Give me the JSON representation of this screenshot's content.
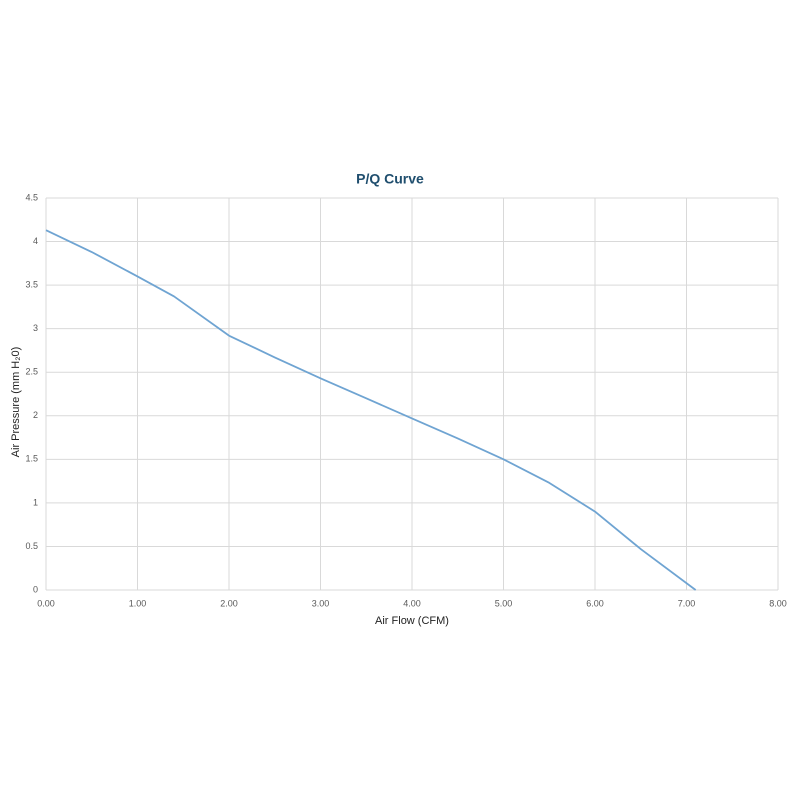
{
  "chart_data": {
    "type": "line",
    "title": "P/Q Curve",
    "x_label": "Air Flow (CFM)",
    "y_label": "Air Pressure (mm H₂0)",
    "x": [
      0,
      0.5,
      1.0,
      1.4,
      2.0,
      2.5,
      3.0,
      3.5,
      4.0,
      4.5,
      5.0,
      5.5,
      6.0,
      6.5,
      7.1
    ],
    "values": [
      4.13,
      3.88,
      3.6,
      3.37,
      2.92,
      2.67,
      2.43,
      2.2,
      1.97,
      1.74,
      1.5,
      1.23,
      0.9,
      0.47,
      0
    ],
    "color": "#6fa4d2",
    "xlim": [
      0,
      8
    ],
    "xticks": [
      {
        "value": 0,
        "label": "0.00"
      },
      {
        "value": 1,
        "label": "1.00"
      },
      {
        "value": 2,
        "label": "2.00"
      },
      {
        "value": 3,
        "label": "3.00"
      },
      {
        "value": 4,
        "label": "4.00"
      },
      {
        "value": 5,
        "label": "5.00"
      },
      {
        "value": 6,
        "label": "6.00"
      },
      {
        "value": 7,
        "label": "7.00"
      },
      {
        "value": 8,
        "label": "8.00"
      }
    ],
    "ylim": [
      0,
      4.5
    ],
    "yticks": [
      0,
      0.5,
      1,
      1.5,
      2,
      2.5,
      3,
      3.5,
      4,
      4.5
    ],
    "grid": true
  }
}
